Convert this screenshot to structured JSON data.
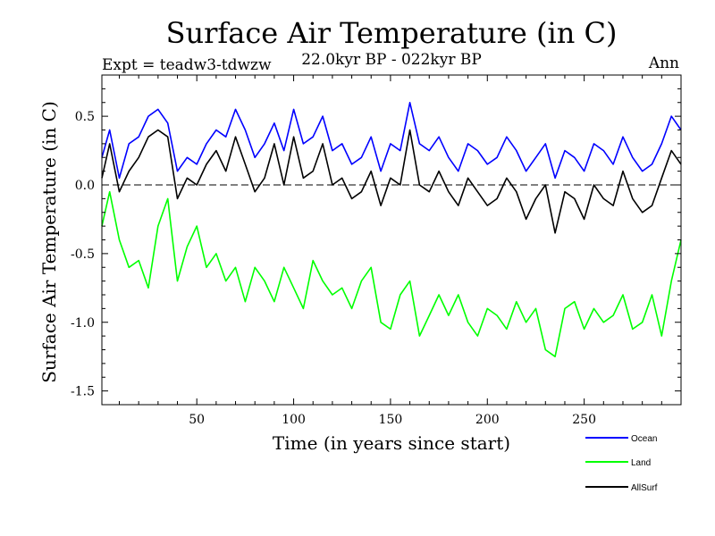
{
  "chart_data": {
    "type": "line",
    "title": "Surface Air Temperature (in C)",
    "subtitle_left": "Expt = teadw3-tdwzw",
    "subtitle_center": "22.0kyr BP - 022kyr BP",
    "subtitle_right": "Ann",
    "xlabel": "Time (in years since start)",
    "ylabel": "Surface Air Temperature (in C)",
    "xlim": [
      1,
      300
    ],
    "ylim": [
      -1.6,
      0.8
    ],
    "xticks": [
      50,
      100,
      150,
      200,
      250
    ],
    "xtick_labels": [
      "50",
      "100",
      "150",
      "200",
      "250"
    ],
    "yticks": [
      -1.5,
      -1.0,
      -0.5,
      0.0,
      0.5
    ],
    "ytick_labels": [
      "-1.5",
      "-1.0",
      "-0.5",
      "0.0",
      "0.5"
    ],
    "zero_line": true,
    "legend_position": "bottom-right, below plot",
    "series": [
      {
        "name": "Ocean",
        "color": "#0000ff",
        "x": [
          1,
          5,
          10,
          15,
          20,
          25,
          30,
          35,
          40,
          45,
          50,
          55,
          60,
          65,
          70,
          75,
          80,
          85,
          90,
          95,
          100,
          105,
          110,
          115,
          120,
          125,
          130,
          135,
          140,
          145,
          150,
          155,
          160,
          165,
          170,
          175,
          180,
          185,
          190,
          195,
          200,
          205,
          210,
          215,
          220,
          225,
          230,
          235,
          240,
          245,
          250,
          255,
          260,
          265,
          270,
          275,
          280,
          285,
          290,
          295,
          300
        ],
        "values": [
          0.2,
          0.4,
          0.05,
          0.3,
          0.35,
          0.5,
          0.55,
          0.45,
          0.1,
          0.2,
          0.15,
          0.3,
          0.4,
          0.35,
          0.55,
          0.4,
          0.2,
          0.3,
          0.45,
          0.25,
          0.55,
          0.3,
          0.35,
          0.5,
          0.25,
          0.3,
          0.15,
          0.2,
          0.35,
          0.1,
          0.3,
          0.25,
          0.6,
          0.3,
          0.25,
          0.35,
          0.2,
          0.1,
          0.3,
          0.25,
          0.15,
          0.2,
          0.35,
          0.25,
          0.1,
          0.2,
          0.3,
          0.05,
          0.25,
          0.2,
          0.1,
          0.3,
          0.25,
          0.15,
          0.35,
          0.2,
          0.1,
          0.15,
          0.3,
          0.5,
          0.4
        ]
      },
      {
        "name": "Land",
        "color": "#00ff00",
        "x": [
          1,
          5,
          10,
          15,
          20,
          25,
          30,
          35,
          40,
          45,
          50,
          55,
          60,
          65,
          70,
          75,
          80,
          85,
          90,
          95,
          100,
          105,
          110,
          115,
          120,
          125,
          130,
          135,
          140,
          145,
          150,
          155,
          160,
          165,
          170,
          175,
          180,
          185,
          190,
          195,
          200,
          205,
          210,
          215,
          220,
          225,
          230,
          235,
          240,
          245,
          250,
          255,
          260,
          265,
          270,
          275,
          280,
          285,
          290,
          295,
          300
        ],
        "values": [
          -0.3,
          -0.05,
          -0.4,
          -0.6,
          -0.55,
          -0.75,
          -0.3,
          -0.1,
          -0.7,
          -0.45,
          -0.3,
          -0.6,
          -0.5,
          -0.7,
          -0.6,
          -0.85,
          -0.6,
          -0.7,
          -0.85,
          -0.6,
          -0.75,
          -0.9,
          -0.55,
          -0.7,
          -0.8,
          -0.75,
          -0.9,
          -0.7,
          -0.6,
          -1.0,
          -1.05,
          -0.8,
          -0.7,
          -1.1,
          -0.95,
          -0.8,
          -0.95,
          -0.8,
          -1.0,
          -1.1,
          -0.9,
          -0.95,
          -1.05,
          -0.85,
          -1.0,
          -0.9,
          -1.2,
          -1.25,
          -0.9,
          -0.85,
          -1.05,
          -0.9,
          -1.0,
          -0.95,
          -0.8,
          -1.05,
          -1.0,
          -0.8,
          -1.1,
          -0.7,
          -0.4
        ]
      },
      {
        "name": "AllSurf",
        "color": "#000000",
        "x": [
          1,
          5,
          10,
          15,
          20,
          25,
          30,
          35,
          40,
          45,
          50,
          55,
          60,
          65,
          70,
          75,
          80,
          85,
          90,
          95,
          100,
          105,
          110,
          115,
          120,
          125,
          130,
          135,
          140,
          145,
          150,
          155,
          160,
          165,
          170,
          175,
          180,
          185,
          190,
          195,
          200,
          205,
          210,
          215,
          220,
          225,
          230,
          235,
          240,
          245,
          250,
          255,
          260,
          265,
          270,
          275,
          280,
          285,
          290,
          295,
          300
        ],
        "values": [
          0.05,
          0.3,
          -0.05,
          0.1,
          0.2,
          0.35,
          0.4,
          0.35,
          -0.1,
          0.05,
          0.0,
          0.15,
          0.25,
          0.1,
          0.35,
          0.15,
          -0.05,
          0.05,
          0.3,
          0.0,
          0.35,
          0.05,
          0.1,
          0.3,
          0.0,
          0.05,
          -0.1,
          -0.05,
          0.1,
          -0.15,
          0.05,
          0.0,
          0.4,
          0.0,
          -0.05,
          0.1,
          -0.05,
          -0.15,
          0.05,
          -0.05,
          -0.15,
          -0.1,
          0.05,
          -0.05,
          -0.25,
          -0.1,
          0.0,
          -0.35,
          -0.05,
          -0.1,
          -0.25,
          0.0,
          -0.1,
          -0.15,
          0.1,
          -0.1,
          -0.2,
          -0.15,
          0.05,
          0.25,
          0.15
        ]
      }
    ]
  }
}
